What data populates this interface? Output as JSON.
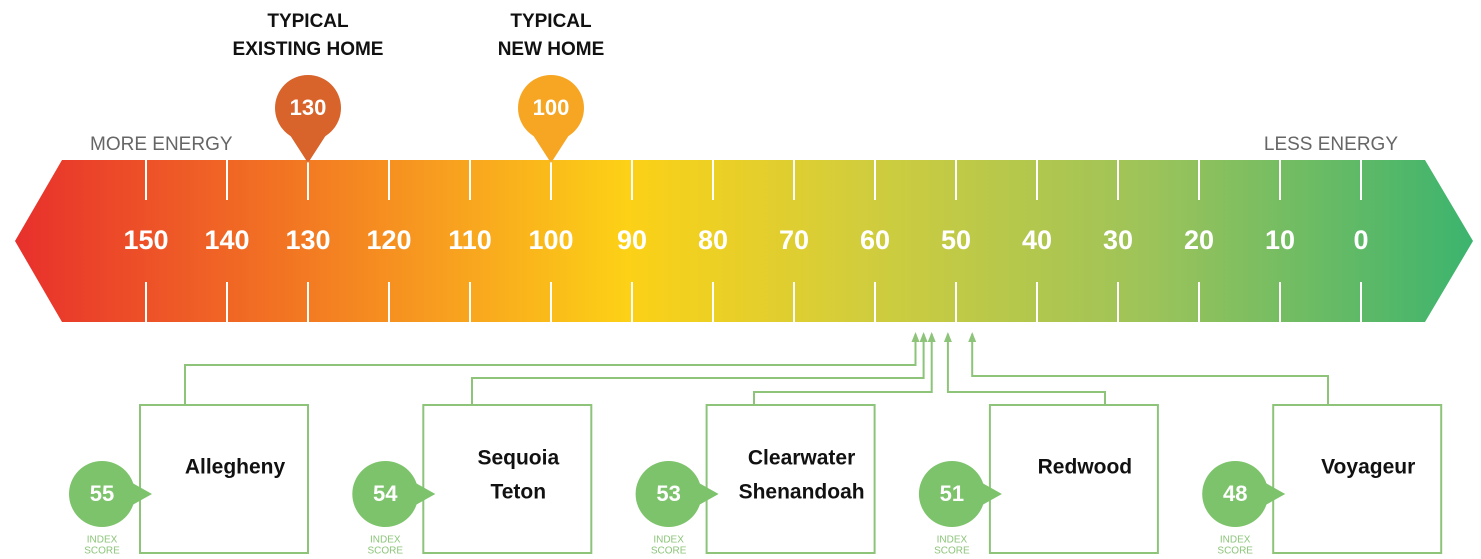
{
  "scale": {
    "left_label": "MORE ENERGY",
    "right_label": "LESS ENERGY",
    "ticks": [
      150,
      140,
      130,
      120,
      110,
      100,
      90,
      80,
      70,
      60,
      50,
      40,
      30,
      20,
      10,
      0
    ]
  },
  "markers": [
    {
      "title_lines": [
        "TYPICAL",
        "EXISTING HOME"
      ],
      "value": 130,
      "color": "#d8632b"
    },
    {
      "title_lines": [
        "TYPICAL",
        "NEW HOME"
      ],
      "value": 100,
      "color": "#f6a623"
    }
  ],
  "homes": [
    {
      "score": 55,
      "names": [
        "Allegheny"
      ],
      "caption_lines": [
        "INDEX",
        "SCORE"
      ]
    },
    {
      "score": 54,
      "names": [
        "Sequoia",
        "Teton"
      ],
      "caption_lines": [
        "INDEX",
        "SCORE"
      ]
    },
    {
      "score": 53,
      "names": [
        "Clearwater",
        "Shenandoah"
      ],
      "caption_lines": [
        "INDEX",
        "SCORE"
      ]
    },
    {
      "score": 51,
      "names": [
        "Redwood"
      ],
      "caption_lines": [
        "INDEX",
        "SCORE"
      ]
    },
    {
      "score": 48,
      "names": [
        "Voyageur"
      ],
      "caption_lines": [
        "INDEX",
        "SCORE"
      ]
    }
  ]
}
